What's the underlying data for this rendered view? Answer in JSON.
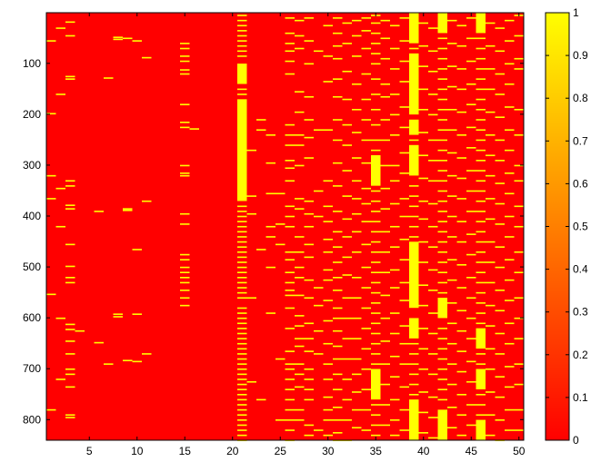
{
  "chart_data": {
    "type": "heatmap",
    "title": "",
    "xlabel": "",
    "ylabel": "",
    "x_range": [
      0.5,
      50.5
    ],
    "y_range": [
      0.5,
      840.5
    ],
    "y_reversed": true,
    "x_ticks": [
      "5",
      "10",
      "15",
      "20",
      "25",
      "30",
      "35",
      "40",
      "45",
      "50"
    ],
    "y_ticks": [
      "100",
      "200",
      "300",
      "400",
      "500",
      "600",
      "700",
      "800"
    ],
    "colorbar": {
      "colormap": "autumn",
      "low_color": "#ff0000",
      "high_color": "#ffff00",
      "range": [
        0,
        1
      ],
      "ticks": [
        "0",
        "0.1",
        "0.2",
        "0.3",
        "0.4",
        "0.5",
        "0.6",
        "0.7",
        "0.8",
        "0.9",
        "1"
      ]
    },
    "background_value": 0,
    "columns": [
      {
        "x": 1,
        "value_one_rows": [
          55,
          198,
          320,
          365,
          553,
          780
        ]
      },
      {
        "x": 2,
        "value_one_rows": [
          30,
          160,
          345,
          420,
          600,
          720
        ]
      },
      {
        "x": 3,
        "value_one_rows": [
          18,
          45,
          125,
          130,
          330,
          340,
          378,
          385,
          455,
          498,
          520,
          530,
          612,
          622,
          645,
          670,
          700,
          710,
          735,
          790,
          795
        ]
      },
      {
        "x": 4,
        "value_one_rows": [
          625
        ]
      },
      {
        "x": 6,
        "value_one_rows": [
          390,
          648
        ]
      },
      {
        "x": 7,
        "value_one_rows": [
          128,
          690
        ]
      },
      {
        "x": 8,
        "value_one_rows": [
          48,
          52,
          592,
          597
        ]
      },
      {
        "x": 9,
        "value_one_rows": [
          50,
          385,
          388,
          683
        ]
      },
      {
        "x": 10,
        "value_one_rows": [
          55,
          465,
          592,
          685
        ]
      },
      {
        "x": 11,
        "value_one_rows": [
          88,
          370,
          670
        ]
      },
      {
        "x": 15,
        "value_one_rows": [
          60,
          70,
          85,
          95,
          112,
          120,
          180,
          215,
          225,
          300,
          315,
          320,
          395,
          415,
          475,
          485,
          500,
          510,
          520,
          530,
          545,
          560,
          575
        ]
      },
      {
        "x": 16,
        "value_one_rows": [
          228
        ]
      },
      {
        "x": 21,
        "band_rows": [
          [
            170,
            370
          ],
          [
            100,
            140
          ]
        ],
        "value_one_rows": [
          5,
          15,
          25,
          35,
          45,
          55,
          65,
          75,
          85,
          150,
          160,
          380,
          390,
          400,
          410,
          420,
          430,
          440,
          450,
          460,
          470,
          480,
          490,
          500,
          510,
          520,
          530,
          540,
          550,
          560,
          580,
          590,
          600,
          610,
          620,
          630,
          640,
          650,
          660,
          670,
          680,
          690,
          700,
          710,
          720,
          730,
          740,
          750,
          760,
          770,
          780,
          790,
          800,
          810,
          820,
          830,
          840
        ]
      },
      {
        "x": 22,
        "value_one_rows": [
          270,
          360,
          395,
          560,
          725
        ]
      },
      {
        "x": 23,
        "value_one_rows": [
          210,
          230,
          465,
          760
        ]
      },
      {
        "x": 24,
        "value_one_rows": [
          240,
          295,
          355,
          420,
          440,
          500,
          590
        ]
      },
      {
        "x": 25,
        "value_one_rows": [
          355,
          415,
          455,
          680,
          800
        ]
      },
      {
        "x": 26,
        "value_one_rows": [
          10,
          40,
          60,
          75,
          95,
          120,
          220,
          240,
          260,
          290,
          305,
          330,
          380,
          400,
          420,
          470,
          485,
          510,
          530,
          545,
          555,
          580,
          620,
          665,
          690,
          700,
          720,
          740,
          760,
          780,
          800,
          820,
          840
        ]
      },
      {
        "x": 27,
        "value_one_rows": [
          15,
          45,
          70,
          155,
          195,
          240,
          260,
          300,
          365,
          385,
          440,
          470,
          500,
          520,
          555,
          595,
          615,
          640,
          655,
          690,
          710,
          735,
          780,
          800
        ]
      },
      {
        "x": 28,
        "value_one_rows": [
          10,
          55,
          100,
          165,
          210,
          245,
          285,
          370,
          395,
          420,
          455,
          480,
          525,
          560,
          610,
          640,
          665,
          700,
          720,
          740,
          760,
          810,
          830
        ]
      },
      {
        "x": 29,
        "value_one_rows": [
          75,
          230,
          350,
          400,
          540,
          575,
          625,
          670,
          820
        ]
      },
      {
        "x": 30,
        "value_one_rows": [
          25,
          85,
          135,
          230,
          330,
          380,
          410,
          445,
          470,
          505,
          525,
          565,
          605,
          650,
          690,
          720,
          755,
          780,
          800,
          830
        ]
      },
      {
        "x": 31,
        "value_one_rows": [
          10,
          40,
          65,
          90,
          130,
          165,
          210,
          250,
          295,
          340,
          390,
          430,
          460,
          490,
          520,
          545,
          580,
          600,
          625,
          655,
          680,
          710,
          740,
          775,
          800,
          825,
          840
        ]
      },
      {
        "x": 32,
        "value_one_rows": [
          20,
          60,
          115,
          170,
          220,
          260,
          310,
          360,
          405,
          440,
          480,
          515,
          560,
          600,
          640,
          680,
          720,
          760,
          800,
          840
        ]
      },
      {
        "x": 33,
        "value_one_rows": [
          15,
          45,
          85,
          140,
          190,
          235,
          285,
          330,
          365,
          395,
          430,
          470,
          520,
          560,
          600,
          640,
          680,
          710,
          745,
          780,
          815
        ]
      },
      {
        "x": 34,
        "value_one_rows": [
          10,
          35,
          70,
          120,
          170,
          210,
          250,
          295,
          345,
          375,
          410,
          455,
          500,
          540,
          580,
          620,
          660,
          700,
          740,
          780,
          820
        ]
      },
      {
        "x": 35,
        "band_rows": [
          [
            280,
            340
          ],
          [
            700,
            760
          ]
        ],
        "value_one_rows": [
          5,
          20,
          40,
          60,
          80,
          100,
          130,
          160,
          190,
          220,
          250,
          270,
          350,
          370,
          390,
          410,
          430,
          450,
          470,
          490,
          510,
          530,
          550,
          570,
          590,
          610,
          630,
          650,
          670,
          690,
          770,
          790,
          810,
          830
        ]
      },
      {
        "x": 36,
        "value_one_rows": [
          15,
          50,
          90,
          140,
          165,
          210,
          250,
          300,
          345,
          385,
          430,
          470,
          510,
          555,
          600,
          645,
          690,
          730,
          770,
          810
        ]
      },
      {
        "x": 37,
        "value_one_rows": [
          25,
          70,
          110,
          160,
          200,
          240,
          300,
          330,
          375,
          420,
          460,
          505,
          540,
          590,
          630,
          675,
          715,
          760,
          800,
          830
        ]
      },
      {
        "x": 38,
        "value_one_rows": [
          10,
          55,
          95,
          135,
          185,
          225,
          275,
          315,
          365,
          400,
          445,
          485,
          530,
          565,
          615,
          650,
          690,
          735,
          780,
          820
        ]
      },
      {
        "x": 39,
        "band_rows": [
          [
            0,
            60
          ],
          [
            80,
            200
          ],
          [
            210,
            240
          ],
          [
            260,
            320
          ],
          [
            450,
            580
          ],
          [
            600,
            640
          ],
          [
            760,
            840
          ]
        ],
        "value_one_rows": [
          70,
          250,
          340,
          360,
          380,
          400,
          420,
          440,
          650,
          670,
          690,
          710,
          730,
          750
        ]
      },
      {
        "x": 40,
        "value_one_rows": [
          20,
          65,
          105,
          150,
          190,
          235,
          280,
          325,
          370,
          405,
          450,
          490,
          535,
          575,
          620,
          660,
          700,
          745,
          785,
          825
        ]
      },
      {
        "x": 41,
        "value_one_rows": [
          30,
          75,
          115,
          160,
          200,
          250,
          290,
          330,
          375,
          420,
          460,
          505,
          545,
          590,
          630,
          670,
          710,
          755,
          795,
          835
        ]
      },
      {
        "x": 42,
        "band_rows": [
          [
            0,
            40
          ],
          [
            560,
            600
          ],
          [
            780,
            840
          ]
        ],
        "value_one_rows": [
          50,
          70,
          90,
          110,
          130,
          150,
          170,
          190,
          210,
          230,
          250,
          270,
          290,
          310,
          330,
          350,
          370,
          390,
          410,
          430,
          450,
          470,
          490,
          510,
          530,
          550,
          620,
          640,
          660,
          680,
          700,
          720,
          740,
          760
        ]
      },
      {
        "x": 43,
        "value_one_rows": [
          15,
          60,
          105,
          145,
          190,
          230,
          275,
          320,
          360,
          400,
          440,
          485,
          525,
          570,
          610,
          650,
          690,
          730,
          775,
          815
        ]
      },
      {
        "x": 44,
        "value_one_rows": [
          25,
          65,
          110,
          150,
          195,
          240,
          285,
          325,
          365,
          410,
          450,
          495,
          540,
          585,
          625,
          665,
          705,
          750,
          790,
          830
        ]
      },
      {
        "x": 45,
        "value_one_rows": [
          10,
          50,
          95,
          140,
          180,
          225,
          265,
          310,
          350,
          390,
          435,
          475,
          520,
          560,
          600,
          640,
          685,
          725,
          770,
          810
        ]
      },
      {
        "x": 46,
        "band_rows": [
          [
            0,
            40
          ],
          [
            620,
            660
          ],
          [
            700,
            740
          ],
          [
            800,
            840
          ]
        ],
        "value_one_rows": [
          50,
          70,
          90,
          110,
          130,
          150,
          170,
          190,
          210,
          230,
          250,
          270,
          290,
          310,
          330,
          350,
          370,
          390,
          410,
          430,
          450,
          470,
          490,
          510,
          530,
          550,
          570,
          590,
          610,
          670,
          690,
          750,
          770,
          790
        ]
      },
      {
        "x": 47,
        "value_one_rows": [
          20,
          65,
          110,
          150,
          195,
          240,
          280,
          320,
          365,
          405,
          450,
          490,
          530,
          575,
          615,
          660,
          700,
          745,
          790,
          830
        ]
      },
      {
        "x": 48,
        "value_one_rows": [
          30,
          75,
          120,
          160,
          205,
          250,
          290,
          335,
          375,
          415,
          460,
          500,
          545,
          585,
          630,
          670,
          715,
          755,
          800,
          840
        ]
      },
      {
        "x": 49,
        "value_one_rows": [
          15,
          55,
          100,
          140,
          185,
          230,
          270,
          315,
          355,
          400,
          440,
          485,
          525,
          565,
          610,
          650,
          695,
          735,
          780,
          820
        ]
      },
      {
        "x": 50,
        "value_one_rows": [
          5,
          45,
          90,
          110,
          190,
          240,
          300,
          330,
          380,
          420,
          470,
          510,
          560,
          600,
          640,
          690,
          730,
          780,
          820
        ]
      }
    ]
  }
}
